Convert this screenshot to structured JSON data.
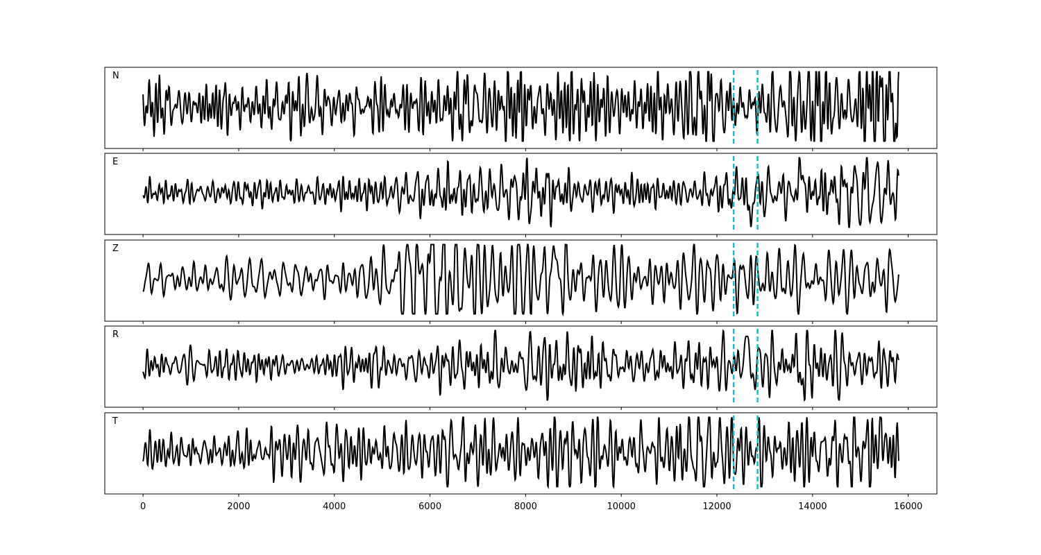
{
  "chart_data": {
    "type": "line",
    "title": "",
    "xlabel": "",
    "ylabel": "",
    "xlim": [
      -800,
      16600
    ],
    "xticks": [
      0,
      2000,
      4000,
      6000,
      8000,
      10000,
      12000,
      14000,
      16000
    ],
    "xtick_labels": [
      "0",
      "2000",
      "4000",
      "6000",
      "8000",
      "10000",
      "12000",
      "14000",
      "16000"
    ],
    "grid": false,
    "shared_x": true,
    "trace_color": "#000000",
    "marker_color": "#17becf",
    "vertical_markers": [
      12350,
      12850
    ],
    "panels": [
      {
        "label": "N",
        "x_range": [
          0,
          15800
        ],
        "envelope": [
          [
            0,
            0.35
          ],
          [
            1500,
            0.4
          ],
          [
            3000,
            0.45
          ],
          [
            4000,
            0.5
          ],
          [
            6500,
            0.5
          ],
          [
            8500,
            0.65
          ],
          [
            10500,
            0.55
          ],
          [
            11500,
            0.7
          ],
          [
            13000,
            0.55
          ],
          [
            14500,
            0.8
          ],
          [
            15800,
            0.9
          ]
        ],
        "bursts": []
      },
      {
        "label": "E",
        "x_range": [
          0,
          15800
        ],
        "envelope": [
          [
            0,
            0.22
          ],
          [
            2000,
            0.22
          ],
          [
            4000,
            0.28
          ],
          [
            6000,
            0.35
          ],
          [
            8000,
            0.45
          ],
          [
            10000,
            0.3
          ],
          [
            12000,
            0.3
          ],
          [
            14000,
            0.4
          ],
          [
            15800,
            0.5
          ]
        ],
        "bursts": [
          {
            "x": 12650,
            "amp": -0.85,
            "width": 70
          },
          {
            "x": 12560,
            "amp": 0.55,
            "width": 60
          },
          {
            "x": 13720,
            "amp": 0.85,
            "width": 70
          },
          {
            "x": 13640,
            "amp": -0.45,
            "width": 60
          }
        ]
      },
      {
        "label": "Z",
        "x_range": [
          0,
          15800
        ],
        "envelope": [
          [
            0,
            0.3
          ],
          [
            3000,
            0.3
          ],
          [
            5000,
            0.45
          ],
          [
            6000,
            0.9
          ],
          [
            9000,
            0.75
          ],
          [
            10500,
            0.5
          ],
          [
            12000,
            0.6
          ],
          [
            15800,
            0.5
          ]
        ],
        "bursts": [
          {
            "x": 6000,
            "amp": 0.85,
            "width": 60
          },
          {
            "x": 8600,
            "amp": 0.7,
            "width": 60
          }
        ]
      },
      {
        "label": "R",
        "x_range": [
          0,
          15800
        ],
        "envelope": [
          [
            0,
            0.25
          ],
          [
            4000,
            0.3
          ],
          [
            6500,
            0.35
          ],
          [
            8500,
            0.5
          ],
          [
            10500,
            0.35
          ],
          [
            12000,
            0.35
          ],
          [
            14000,
            0.45
          ],
          [
            15800,
            0.45
          ]
        ],
        "bursts": [
          {
            "x": 12630,
            "amp": 0.9,
            "width": 60
          },
          {
            "x": 12720,
            "amp": -0.45,
            "width": 60
          },
          {
            "x": 13730,
            "amp": -0.75,
            "width": 60
          },
          {
            "x": 13660,
            "amp": 0.6,
            "width": 60
          }
        ]
      },
      {
        "label": "T",
        "x_range": [
          0,
          15800
        ],
        "envelope": [
          [
            0,
            0.35
          ],
          [
            2000,
            0.4
          ],
          [
            4000,
            0.45
          ],
          [
            8000,
            0.55
          ],
          [
            10000,
            0.55
          ],
          [
            11500,
            0.65
          ],
          [
            13500,
            0.55
          ],
          [
            14500,
            0.8
          ],
          [
            15800,
            0.9
          ]
        ],
        "bursts": [
          {
            "x": 15450,
            "amp": 0.85,
            "width": 50
          }
        ]
      }
    ]
  }
}
